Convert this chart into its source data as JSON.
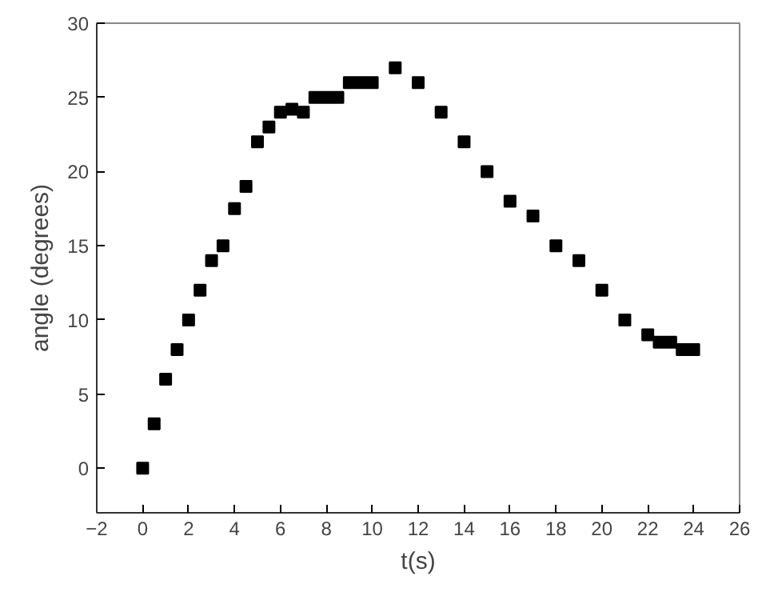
{
  "chart_data": {
    "type": "scatter",
    "xlabel": "t(s)",
    "ylabel": "angle (degrees)",
    "x": [
      0,
      0.5,
      1,
      1.5,
      2,
      2.5,
      3,
      3.5,
      4,
      4.5,
      5,
      5.5,
      6,
      6.5,
      7,
      7.5,
      8,
      8.5,
      9,
      9.5,
      10,
      11,
      12,
      13,
      14,
      15,
      16,
      17,
      18,
      19,
      20,
      21,
      22,
      22.5,
      23,
      23.5,
      24
    ],
    "values": [
      0,
      3,
      6,
      8,
      10,
      12,
      14,
      15,
      17.5,
      19,
      22,
      23,
      24,
      24.2,
      24,
      25,
      25,
      25,
      26,
      26,
      26,
      27,
      26,
      24,
      22,
      20,
      18,
      17,
      15,
      14,
      12,
      10,
      9,
      8.5,
      8.5,
      8,
      8
    ],
    "color": "#000000",
    "marker": "square",
    "xlim": [
      -2,
      26
    ],
    "ylim": [
      -3,
      30
    ],
    "xticks": [
      -2,
      0,
      2,
      4,
      6,
      8,
      10,
      12,
      14,
      16,
      18,
      20,
      22,
      24,
      26
    ],
    "yticks": [
      0,
      5,
      10,
      15,
      20,
      25,
      30
    ],
    "grid": false
  }
}
